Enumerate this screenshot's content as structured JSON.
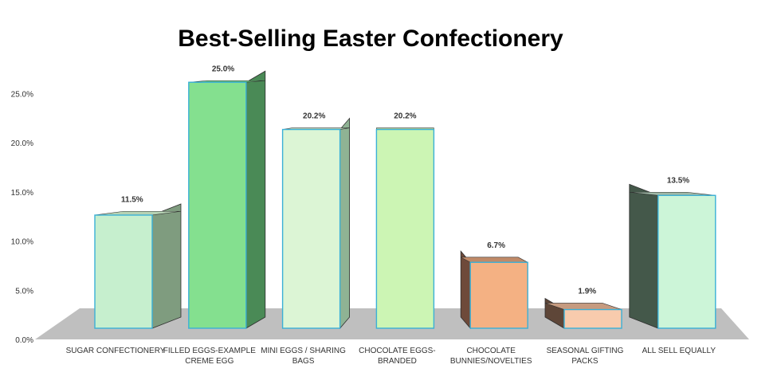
{
  "chart_data": {
    "type": "bar",
    "title": "Best-Selling Easter Confectionery",
    "categories": [
      [
        "SUGAR CONFECTIONERY"
      ],
      [
        "FILLED EGGS-EXAMPLE",
        "CREME EGG"
      ],
      [
        "MINI EGGS / SHARING",
        "BAGS"
      ],
      [
        "CHOCOLATE EGGS-",
        "BRANDED"
      ],
      [
        "CHOCOLATE",
        "BUNNIES/NOVELTIES"
      ],
      [
        "SEASONAL GIFTING",
        "PACKS"
      ],
      [
        "ALL SELL EQUALLY"
      ]
    ],
    "values": [
      11.5,
      25.0,
      20.2,
      20.2,
      6.7,
      1.9,
      13.5
    ],
    "value_labels": [
      "11.5%",
      "25.0%",
      "20.2%",
      "20.2%",
      "6.7%",
      "1.9%",
      "13.5%"
    ],
    "yticks": [
      "0.0%",
      "5.0%",
      "10.0%",
      "15.0%",
      "20.0%",
      "25.0%"
    ],
    "ylim": [
      0,
      25
    ],
    "grid": false,
    "three_d": true,
    "colors": {
      "fronts": [
        "#c6efce",
        "#84e08f",
        "#dcf5d5",
        "#ccf5b4",
        "#f4b183",
        "#f8cbad",
        "#ccf5d8"
      ],
      "sides": [
        "#7f9c7f",
        "#4a8a56",
        "#8fb394",
        "#7fa977",
        "#6e4a3a",
        "#5e4638",
        "#44584a"
      ],
      "tops": [
        "#b6d3b4",
        "#6cc67b",
        "#c3ddc0",
        "#b7dca0",
        "#c08a68",
        "#c69b80",
        "#9fb8a6"
      ],
      "outline": "#3ab0d6",
      "floor": "#bfbfbf"
    }
  }
}
